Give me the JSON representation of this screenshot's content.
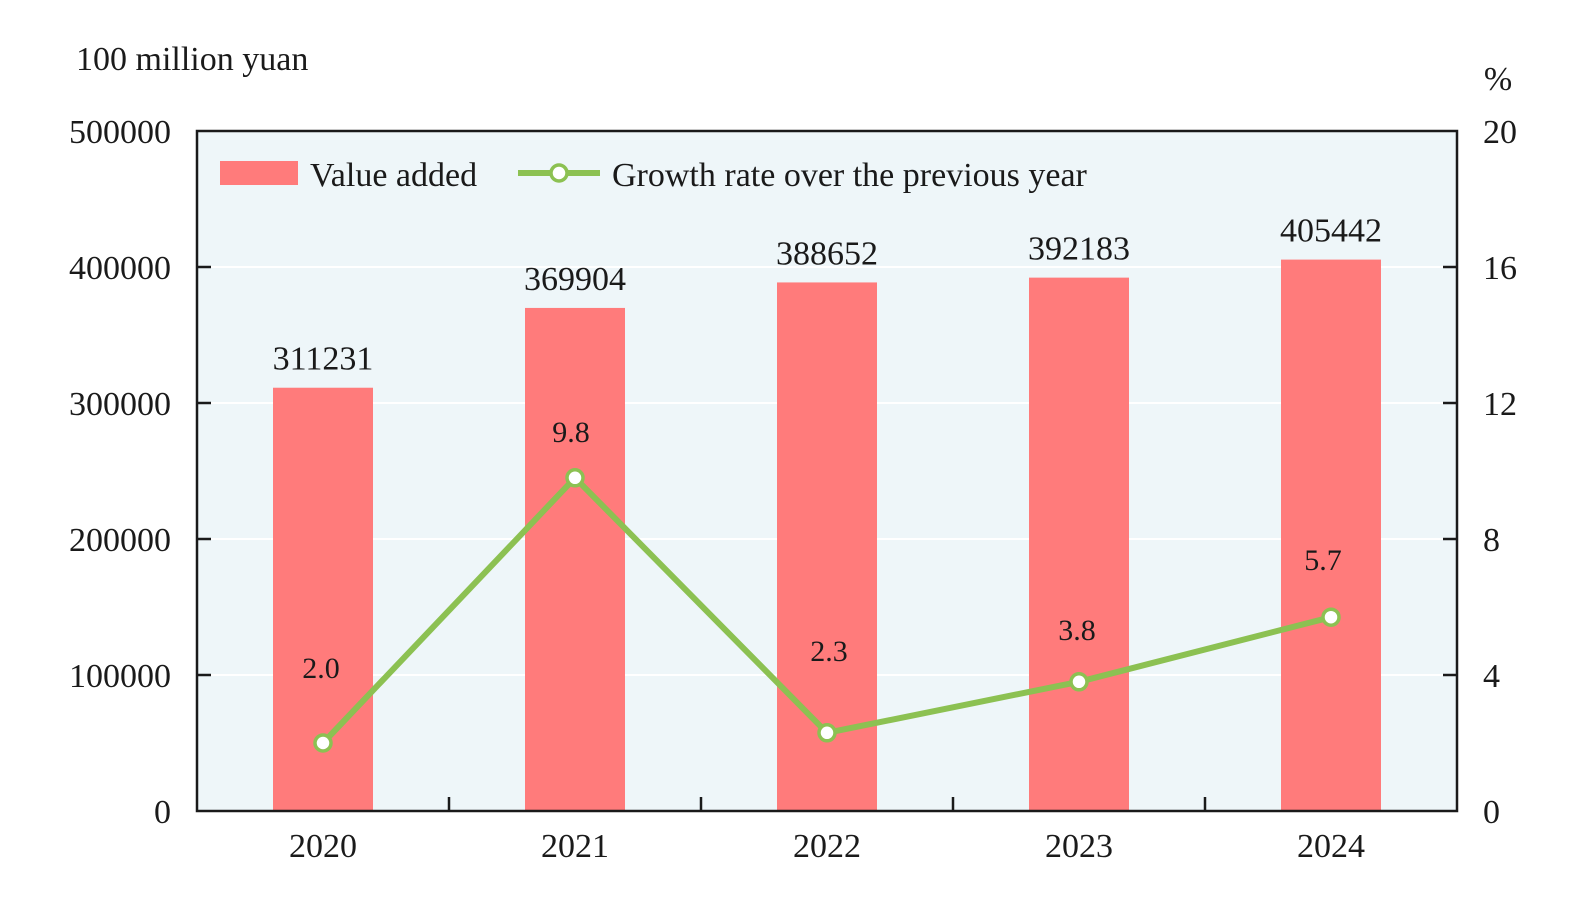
{
  "chart_data": {
    "type": "bar",
    "categories": [
      "2020",
      "2021",
      "2022",
      "2023",
      "2024"
    ],
    "series": [
      {
        "name": "Value added",
        "type": "bar",
        "axis": "left",
        "values": [
          311231,
          369904,
          388652,
          392183,
          405442
        ],
        "labels": [
          "311231",
          "369904",
          "388652",
          "392183",
          "405442"
        ]
      },
      {
        "name": "Growth rate over the previous year",
        "type": "line",
        "axis": "right",
        "values": [
          2.0,
          9.8,
          2.3,
          3.8,
          5.7
        ],
        "labels": [
          "2.0",
          "9.8",
          "2.3",
          "3.8",
          "5.7"
        ]
      }
    ],
    "left_axis": {
      "unit": "100 million yuan",
      "range": [
        0,
        500000
      ],
      "ticks": [
        "0",
        "100000",
        "200000",
        "300000",
        "400000",
        "500000"
      ]
    },
    "right_axis": {
      "unit": "%",
      "range": [
        0,
        20
      ],
      "ticks": [
        "0",
        "4",
        "8",
        "12",
        "16",
        "20"
      ]
    },
    "grid": true,
    "legend_position": "top-left",
    "colors": {
      "bar": "#ff7b7b",
      "line": "#8cc152",
      "plot_background": "#eef6f9",
      "gridline": "#ffffff",
      "axis": "#1a1a1a"
    }
  }
}
